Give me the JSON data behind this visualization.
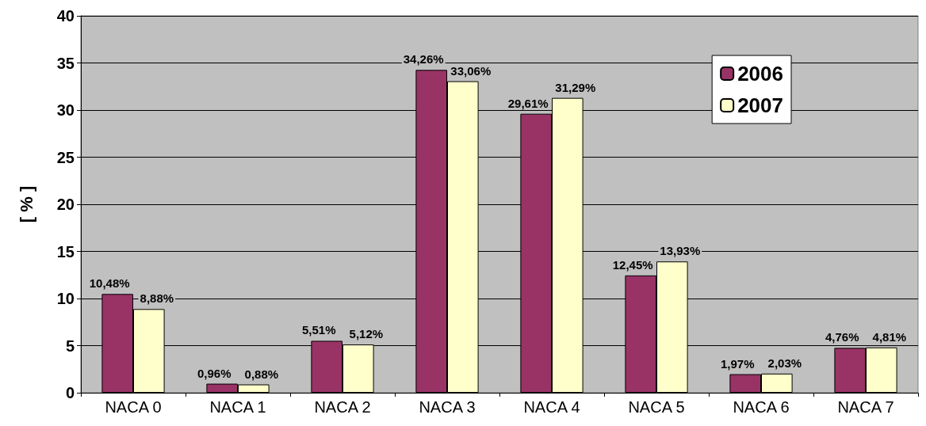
{
  "chart_data": {
    "type": "bar",
    "ylabel": "[ % ]",
    "categories": [
      "NACA 0",
      "NACA 1",
      "NACA 2",
      "NACA 3",
      "NACA 4",
      "NACA 5",
      "NACA 6",
      "NACA 7"
    ],
    "series": [
      {
        "name": "2006",
        "color": "#993366",
        "values": [
          10.48,
          0.96,
          5.51,
          34.26,
          29.61,
          12.45,
          1.97,
          4.76
        ],
        "value_labels": [
          "10,48%",
          "0,96%",
          "5,51%",
          "34,26%",
          "29,61%",
          "12,45%",
          "1,97%",
          "4,76%"
        ]
      },
      {
        "name": "2007",
        "color": "#ffffcc",
        "values": [
          8.88,
          0.88,
          5.12,
          33.06,
          31.29,
          13.93,
          2.03,
          4.81
        ],
        "value_labels": [
          "8,88%",
          "0,88%",
          "5,12%",
          "33,06%",
          "31,29%",
          "13,93%",
          "2,03%",
          "4,81%"
        ]
      }
    ],
    "ylim": [
      0,
      40
    ],
    "yticks": [
      0,
      5,
      10,
      15,
      20,
      25,
      30,
      35,
      40
    ],
    "grid": "y",
    "legend": "top right"
  }
}
